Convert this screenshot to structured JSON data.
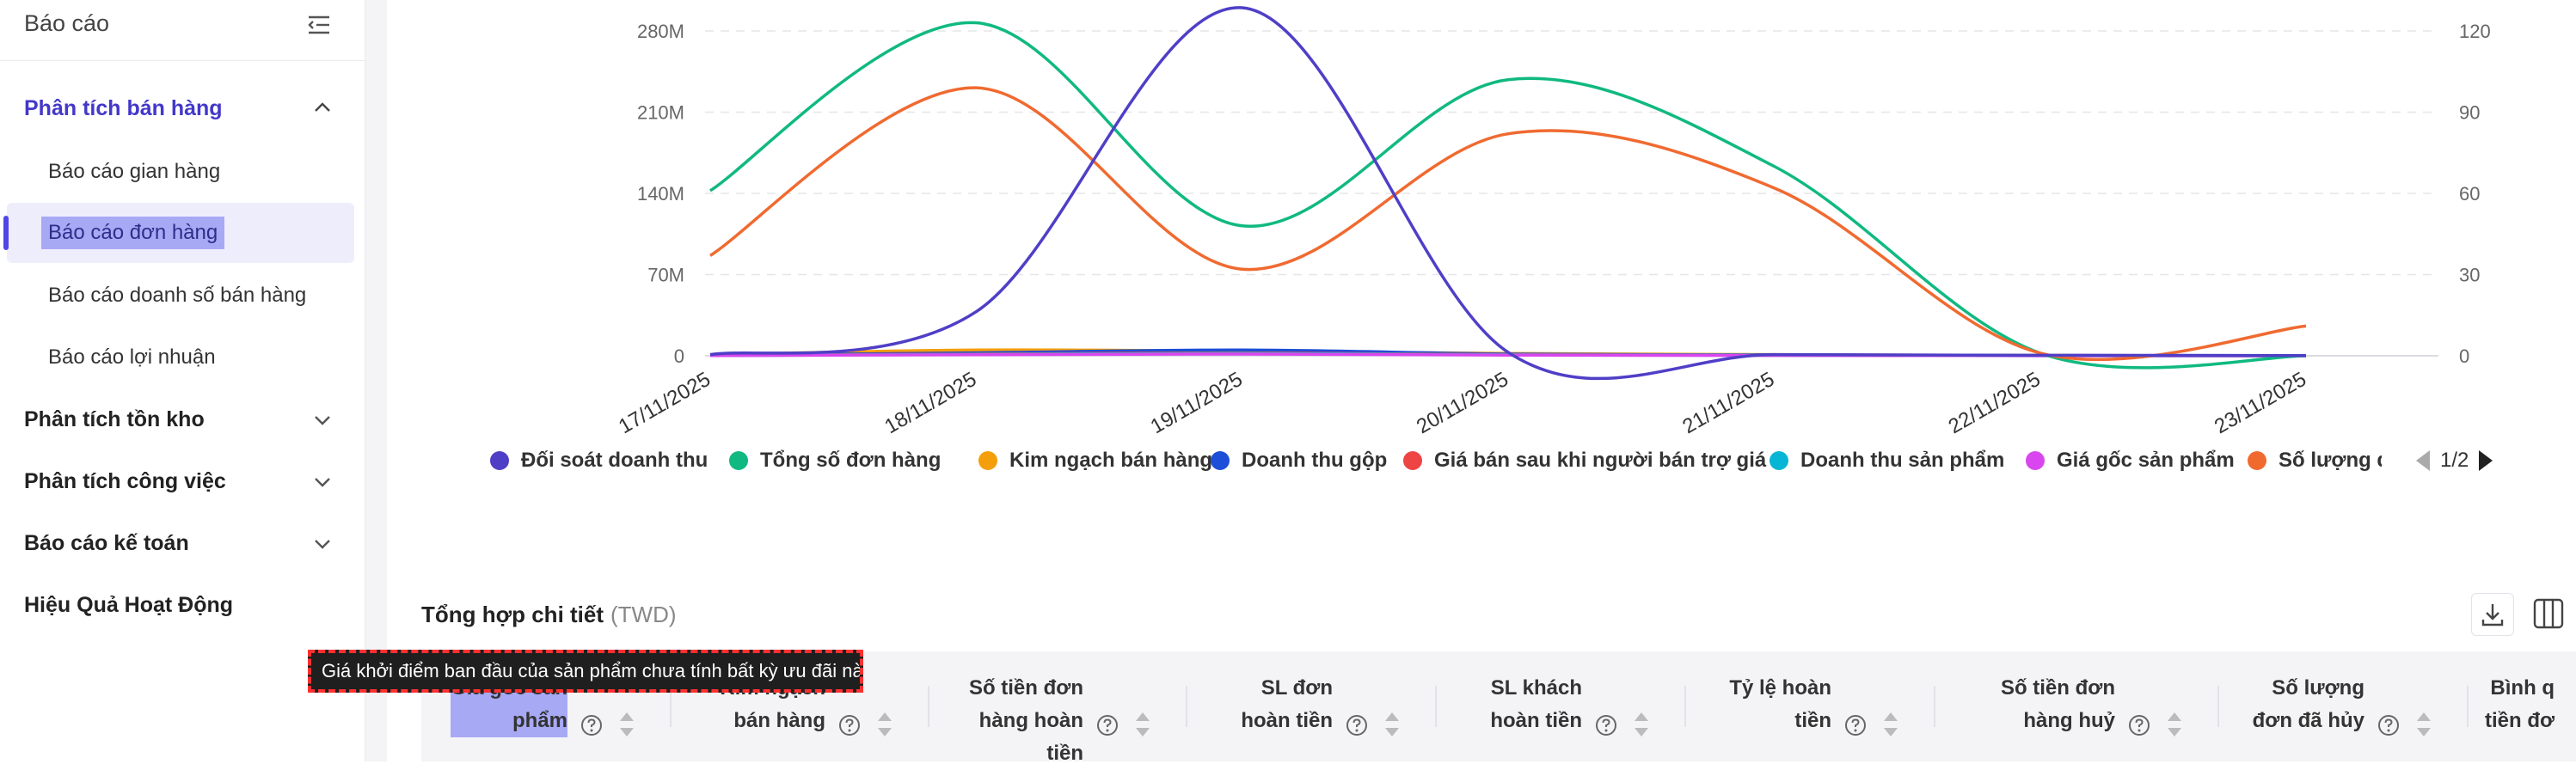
{
  "sidebar": {
    "title": "Báo cáo",
    "groups": [
      {
        "label": "Phân tích bán hàng",
        "expanded": true,
        "items": [
          {
            "label": "Báo cáo gian hàng"
          },
          {
            "label": "Báo cáo đơn hàng",
            "active": true
          },
          {
            "label": "Báo cáo doanh số bán hàng"
          },
          {
            "label": "Báo cáo lợi nhuận"
          }
        ]
      },
      {
        "label": "Phân tích tồn kho"
      },
      {
        "label": "Phân tích công việc"
      },
      {
        "label": "Báo cáo kế toán"
      },
      {
        "label": "Hiệu Quả Hoạt Động"
      }
    ]
  },
  "chart_data": {
    "type": "line",
    "x": [
      "17/11/2025",
      "18/11/2025",
      "19/11/2025",
      "20/11/2025",
      "21/11/2025",
      "22/11/2025",
      "23/11/2025"
    ],
    "y_left_ticks": [
      "280M",
      "210M",
      "140M",
      "70M",
      "0"
    ],
    "y_right_ticks": [
      "120",
      "90",
      "60",
      "30",
      "0"
    ],
    "ylim_left": [
      0,
      280000000
    ],
    "ylim_right": [
      0,
      120
    ],
    "series": [
      {
        "name": "Tổng số đơn hàng",
        "color": "#10b981",
        "axis": "right",
        "values": [
          61,
          123,
          48,
          102,
          70,
          1,
          0
        ]
      },
      {
        "name": "Số lượng đơn",
        "color": "#f06a30",
        "axis": "right",
        "values": [
          37,
          99,
          32,
          82,
          62,
          1,
          11
        ]
      },
      {
        "name": "Đối soát doanh thu",
        "color": "#4f3fc7",
        "axis": "left",
        "values": [
          1000000,
          38000000,
          300000000,
          3000000,
          1000000,
          500000,
          200000
        ]
      },
      {
        "name": "Kim ngạch bán hàng",
        "color": "#f59e0b",
        "axis": "left",
        "values": [
          1000000,
          5000000,
          4000000,
          2000000,
          1000000,
          300000,
          100000
        ]
      },
      {
        "name": "Doanh thu gộp",
        "color": "#1d4ed8",
        "axis": "left",
        "values": [
          500000,
          2500000,
          5000000,
          1500000,
          800000,
          200000,
          100000
        ]
      },
      {
        "name": "Giá bán sau khi người bán trợ giá",
        "color": "#ef4444",
        "axis": "left",
        "values": [
          300000,
          1500000,
          2500000,
          1000000,
          600000,
          150000,
          80000
        ]
      },
      {
        "name": "Doanh thu sản phẩm",
        "color": "#06b6d4",
        "axis": "left",
        "values": [
          200000,
          1200000,
          2000000,
          800000,
          400000,
          100000,
          50000
        ]
      },
      {
        "name": "Giá gốc sản phẩm",
        "color": "#d946ef",
        "axis": "left",
        "values": [
          150000,
          900000,
          1500000,
          600000,
          300000,
          80000,
          40000
        ]
      }
    ],
    "legend_position": "bottom",
    "legend_page": "1/2",
    "grid": true
  },
  "detail": {
    "title": "Tổng hợp chi tiết",
    "unit": "(TWD)",
    "download_icon": "download-icon",
    "columns_icon": "columns-icon",
    "tooltip": "Giá khởi điểm ban đầu của sản phẩm chưa tính bất kỳ ưu đãi nào",
    "columns": [
      {
        "label": "Giá gốc sản\nphẩm",
        "highlight": true
      },
      {
        "label": "Kim ngạch\nbán hàng"
      },
      {
        "label": "Số tiền đơn\nhàng hoàn\ntiền"
      },
      {
        "label": "SL đơn\nhoàn tiền"
      },
      {
        "label": "SL khách\nhoàn tiền"
      },
      {
        "label": "Tỷ lệ hoàn\ntiền"
      },
      {
        "label": "Số tiền đơn\nhàng huỷ"
      },
      {
        "label": "Số lượng\nđơn đã hủy"
      },
      {
        "label": "Bình q\ntiền đơ"
      }
    ]
  }
}
